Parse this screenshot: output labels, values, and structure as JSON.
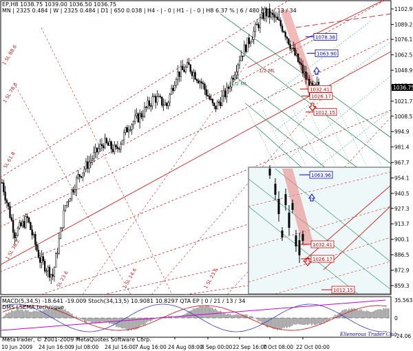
{
  "header": {
    "line1": "EP,H8  1038.75  1039.00  1036.50  1036.75",
    "line2": "MN | 2325   0.484 |  W | 2325   0.484 |  D1 | 650   0.038 |  H4 - | - 0 |  H1 - | - 0 |  H8  6.37 %  | 6 / 480 / 21 / 13 / 34"
  },
  "indicator": {
    "label": "MACD(5,34,5) -18.641 -19.009  Stoch(34,13,5) 10.9081 10.8297  QTA EP  | 0 / 21 / 13 / 34",
    "sublabel": "DMS LSEMA technique"
  },
  "footer": {
    "copyright": "MetaTrader, © 2001-2009 MetaQuotes Software Corp.",
    "signature": "Ellenorous Trader Club"
  },
  "current_price": "1036.75",
  "channel_labels": [
    "1/2 ML",
    "1/2 ML"
  ],
  "fan_labels": [
    "1 SL 88.6",
    "1 SL 78.6",
    "SL 61.8",
    "1 SL 38.2",
    "SL 23.6",
    "1 SL 14.6",
    "1 SL 23.6"
  ],
  "chart_data": {
    "type": "candlestick",
    "symbol": "EP",
    "timeframe": "H8",
    "ohlc_last": {
      "open": 1038.75,
      "high": 1039.0,
      "low": 1036.5,
      "close": 1036.75
    },
    "x_tick_labels": [
      "10 Jun 2009",
      "24 Jun 16:00",
      "9 Jul 08:00",
      "24 Jul 16:00",
      "7 Aug 16:00",
      "24 Aug 08:00",
      "8 Sep 00:00",
      "22 Sep 16:00",
      "7 Oct 08:00",
      "22 Oct 00:00"
    ],
    "y_ticks_main": [
      1102.9,
      1089.2,
      1076.1,
      1062.5,
      1048.9,
      1035.25,
      1021.7,
      1008.5,
      994.9,
      981.4,
      967.7,
      954.1,
      940.5,
      927.3,
      913.7,
      900.1,
      886.5,
      872.9,
      859.3
    ],
    "y_ticks_indicator": [
      35.563,
      0.0,
      -24.06
    ],
    "ylim": [
      859.3,
      1110
    ],
    "close_path": [
      {
        "t": 0,
        "v": 950
      },
      {
        "t": 8,
        "v": 905
      },
      {
        "t": 16,
        "v": 918
      },
      {
        "t": 24,
        "v": 882
      },
      {
        "t": 32,
        "v": 868
      },
      {
        "t": 40,
        "v": 930
      },
      {
        "t": 48,
        "v": 955
      },
      {
        "t": 56,
        "v": 970
      },
      {
        "t": 64,
        "v": 985
      },
      {
        "t": 72,
        "v": 978
      },
      {
        "t": 80,
        "v": 1000
      },
      {
        "t": 88,
        "v": 1010
      },
      {
        "t": 96,
        "v": 1025
      },
      {
        "t": 104,
        "v": 1018
      },
      {
        "t": 110,
        "v": 1045
      },
      {
        "t": 118,
        "v": 1052
      },
      {
        "t": 126,
        "v": 1038
      },
      {
        "t": 134,
        "v": 1015
      },
      {
        "t": 142,
        "v": 1030
      },
      {
        "t": 150,
        "v": 1060
      },
      {
        "t": 158,
        "v": 1080
      },
      {
        "t": 166,
        "v": 1100
      },
      {
        "t": 172,
        "v": 1095
      },
      {
        "t": 178,
        "v": 1085
      },
      {
        "t": 184,
        "v": 1065
      },
      {
        "t": 190,
        "v": 1048
      },
      {
        "t": 196,
        "v": 1030
      },
      {
        "t": 200,
        "v": 1036.75
      }
    ],
    "price_labels": [
      {
        "text": "1078.38",
        "value": 1078.38,
        "color": "#0000cc"
      },
      {
        "text": "1063.90",
        "value": 1063.9,
        "color": "#0000cc"
      },
      {
        "text": "1032.41",
        "value": 1032.41,
        "color": "#cc0000"
      },
      {
        "text": "1026.17",
        "value": 1026.17,
        "color": "#cc0000"
      },
      {
        "text": "1012.15",
        "value": 1012.15,
        "color": "#cc0000"
      }
    ],
    "inset_labels": [
      {
        "text": "1063.96",
        "color": "#0000cc"
      },
      {
        "text": "1032.41",
        "color": "#cc0000"
      },
      {
        "text": "1026.17",
        "color": "#cc0000"
      },
      {
        "text": "1012.15",
        "color": "#cc0000"
      }
    ],
    "colors": {
      "candles": "#000000",
      "red_fan": "#cc2222",
      "green_channel": "#44aa88",
      "highlight": "#e88080",
      "inset_bg": "#eef8f8"
    }
  }
}
